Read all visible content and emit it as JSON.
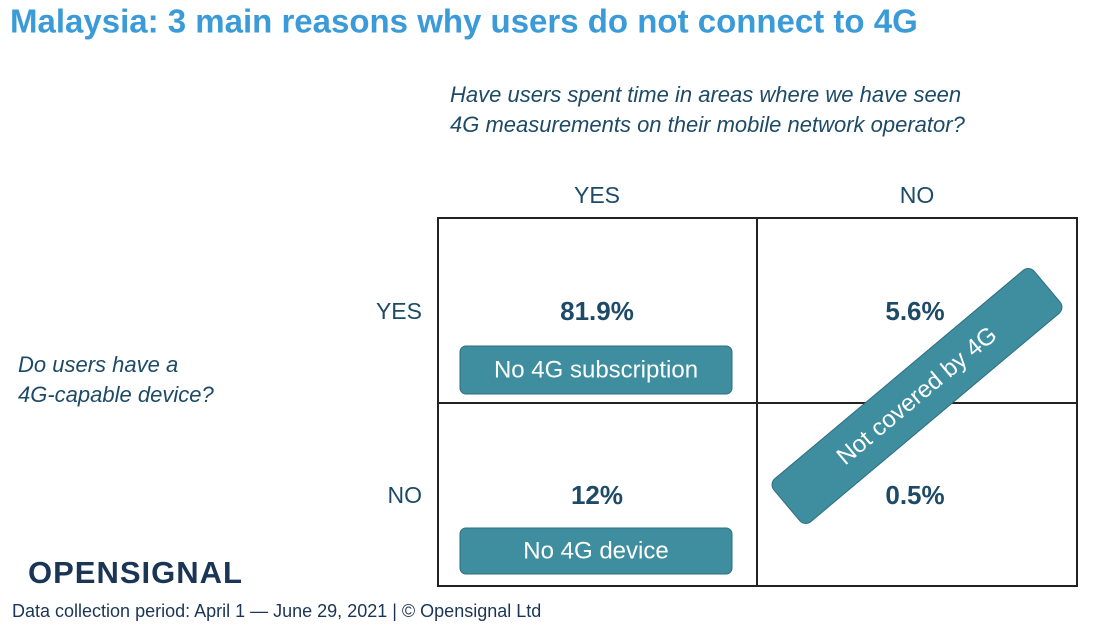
{
  "title": "Malaysia: 3 main reasons why users do not connect to 4G",
  "column_question": [
    "Have users spent time in areas where we have seen",
    "4G measurements on their mobile network operator?"
  ],
  "row_question": [
    "Do users have a",
    "4G-capable device?"
  ],
  "columns": [
    "YES",
    "NO"
  ],
  "rows": [
    {
      "label": "YES",
      "cells": [
        "81.9%",
        "5.6%"
      ]
    },
    {
      "label": "NO",
      "cells": [
        "12%",
        "0.5%"
      ]
    }
  ],
  "annotations": [
    "No 4G subscription",
    "No 4G device",
    "Not covered by 4G"
  ],
  "logo": "OPENSIGNAL",
  "footer": "Data collection period: April 1 — June 29, 2021 | © Opensignal Ltd"
}
